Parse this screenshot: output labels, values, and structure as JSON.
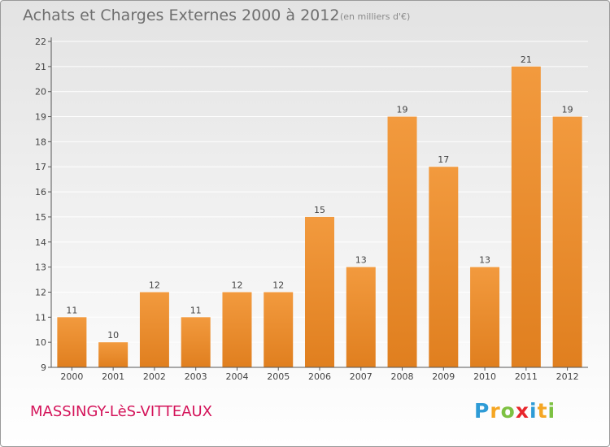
{
  "header": {
    "title": "Achats et Charges Externes 2000 à 2012",
    "unit": "(en milliers d'€)"
  },
  "footer": {
    "commune": "MASSINGY-LèS-VITTEAUX",
    "logo_letters": [
      {
        "char": "P",
        "color": "#2e9bd6"
      },
      {
        "char": "r",
        "color": "#f5a623"
      },
      {
        "char": "o",
        "color": "#7dc142"
      },
      {
        "char": "x",
        "color": "#e8262b"
      },
      {
        "char": "i",
        "color": "#2e9bd6"
      },
      {
        "char": "t",
        "color": "#f5a623"
      },
      {
        "char": "i",
        "color": "#7dc142"
      }
    ]
  },
  "colors": {
    "bar": "#f29a3e",
    "bar_dark": "#e07f1f",
    "axis": "#555555",
    "grid": "#ffffff",
    "text": "#444444"
  },
  "chart_data": {
    "type": "bar",
    "title": "Achats et Charges Externes 2000 à 2012",
    "categories": [
      "2000",
      "2001",
      "2002",
      "2003",
      "2004",
      "2005",
      "2006",
      "2007",
      "2008",
      "2009",
      "2010",
      "2011",
      "2012"
    ],
    "values": [
      11,
      10,
      12,
      11,
      12,
      12,
      15,
      13,
      19,
      17,
      13,
      21,
      19
    ],
    "ylim": [
      9,
      22
    ],
    "yticks": [
      9,
      10,
      11,
      12,
      13,
      14,
      15,
      16,
      17,
      18,
      19,
      20,
      21,
      22
    ],
    "grid": true,
    "data_labels": true
  }
}
